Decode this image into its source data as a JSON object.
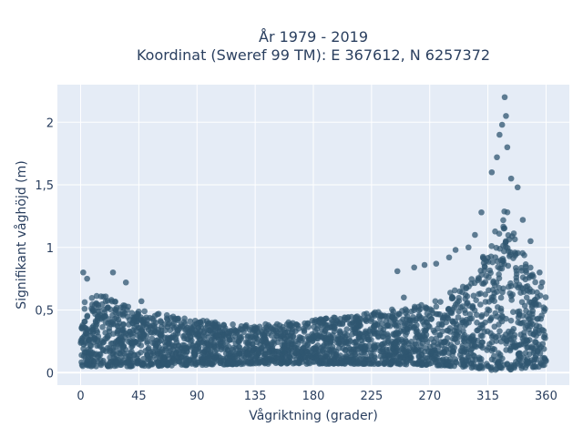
{
  "chart_data": {
    "type": "scatter",
    "title_line1": "År 1979 - 2019",
    "title_line2": "Koordinat (Sweref 99 TM): E 367612, N 6257372",
    "xlabel": "Vågriktning (grader)",
    "ylabel": "Signifikant våghöjd (m)",
    "xlim": [
      -18,
      378
    ],
    "ylim": [
      -0.1,
      2.3
    ],
    "x_ticks": [
      0,
      45,
      90,
      135,
      180,
      225,
      270,
      315,
      360
    ],
    "x_tick_labels": [
      "0",
      "45",
      "90",
      "135",
      "180",
      "225",
      "270",
      "315",
      "360"
    ],
    "y_ticks": [
      0,
      0.5,
      1,
      1.5,
      2
    ],
    "y_tick_labels": [
      "0",
      "0,5",
      "1",
      "1,5",
      "2"
    ],
    "grid": true,
    "marker_color": "#2f5670",
    "band": {
      "x": [
        0,
        20,
        45,
        90,
        135,
        180,
        225,
        270,
        300,
        315,
        330,
        345,
        360
      ],
      "y_low": [
        0.05,
        0.05,
        0.05,
        0.06,
        0.07,
        0.07,
        0.07,
        0.06,
        0.04,
        0.02,
        0.02,
        0.04,
        0.05
      ],
      "y_high": [
        0.6,
        0.62,
        0.5,
        0.42,
        0.38,
        0.42,
        0.48,
        0.55,
        0.72,
        1.0,
        1.35,
        0.9,
        0.65
      ]
    },
    "outliers": [
      {
        "x": 2,
        "y": 0.8
      },
      {
        "x": 5,
        "y": 0.75
      },
      {
        "x": 25,
        "y": 0.8
      },
      {
        "x": 35,
        "y": 0.72
      },
      {
        "x": 47,
        "y": 0.57
      },
      {
        "x": 245,
        "y": 0.81
      },
      {
        "x": 250,
        "y": 0.6
      },
      {
        "x": 258,
        "y": 0.84
      },
      {
        "x": 266,
        "y": 0.86
      },
      {
        "x": 275,
        "y": 0.87
      },
      {
        "x": 285,
        "y": 0.92
      },
      {
        "x": 290,
        "y": 0.98
      },
      {
        "x": 300,
        "y": 1.0
      },
      {
        "x": 305,
        "y": 1.1
      },
      {
        "x": 310,
        "y": 1.28
      },
      {
        "x": 318,
        "y": 1.6
      },
      {
        "x": 322,
        "y": 1.72
      },
      {
        "x": 324,
        "y": 1.9
      },
      {
        "x": 326,
        "y": 1.98
      },
      {
        "x": 328,
        "y": 2.2
      },
      {
        "x": 329,
        "y": 2.05
      },
      {
        "x": 330,
        "y": 1.8
      },
      {
        "x": 333,
        "y": 1.55
      },
      {
        "x": 338,
        "y": 1.48
      },
      {
        "x": 342,
        "y": 1.22
      },
      {
        "x": 348,
        "y": 1.05
      },
      {
        "x": 355,
        "y": 0.8
      },
      {
        "x": 357,
        "y": 0.72
      }
    ]
  }
}
